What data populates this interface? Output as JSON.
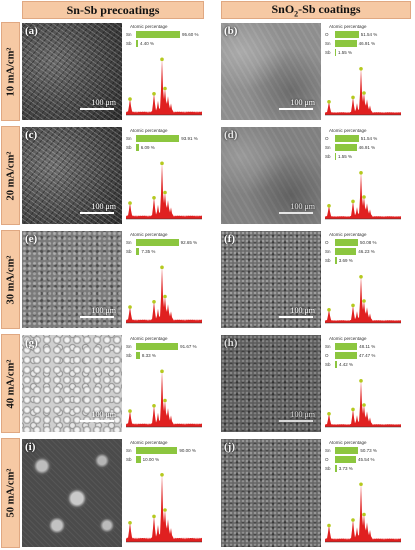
{
  "columns": {
    "left": "Sn-Sb precoatings",
    "right_pre": "SnO",
    "right_sub": "2",
    "right_post": "-Sb coatings"
  },
  "rows": [
    "10 mA/cm²",
    "20 mA/cm²",
    "30 mA/cm²",
    "40 mA/cm²",
    "50 mA/cm²"
  ],
  "eds_title": "Atomic percentage",
  "panels": [
    {
      "label": "(a)",
      "scale": "100 μm",
      "eds": [
        {
          "el": "Sn",
          "val": 95.6,
          "text": "95.60 %"
        },
        {
          "el": "Sb",
          "val": 4.4,
          "text": "4.40 %"
        }
      ]
    },
    {
      "label": "(b)",
      "scale": "100 μm",
      "eds": [
        {
          "el": "O",
          "val": 51.54,
          "text": "51.54 %"
        },
        {
          "el": "Sn",
          "val": 46.91,
          "text": "46.91 %"
        },
        {
          "el": "Sb",
          "val": 1.55,
          "text": "1.55 %"
        }
      ]
    },
    {
      "label": "(c)",
      "scale": "100 μm",
      "eds": [
        {
          "el": "Sn",
          "val": 93.91,
          "text": "93.91 %"
        },
        {
          "el": "Sb",
          "val": 6.09,
          "text": "6.09 %"
        }
      ]
    },
    {
      "label": "(d)",
      "scale": "100 μm",
      "eds": [
        {
          "el": "O",
          "val": 51.54,
          "text": "51.54 %"
        },
        {
          "el": "Sn",
          "val": 46.91,
          "text": "46.91 %"
        },
        {
          "el": "Sb",
          "val": 1.55,
          "text": "1.55 %"
        }
      ]
    },
    {
      "label": "(e)",
      "scale": "100 μm",
      "eds": [
        {
          "el": "Sn",
          "val": 92.65,
          "text": "92.65 %"
        },
        {
          "el": "Sb",
          "val": 7.35,
          "text": "7.35 %"
        }
      ]
    },
    {
      "label": "(f)",
      "scale": "100 μm",
      "eds": [
        {
          "el": "O",
          "val": 50.08,
          "text": "50.08 %"
        },
        {
          "el": "Sn",
          "val": 46.23,
          "text": "46.23 %"
        },
        {
          "el": "Sb",
          "val": 3.69,
          "text": "3.69 %"
        }
      ]
    },
    {
      "label": "(g)",
      "scale": "100 μm",
      "eds": [
        {
          "el": "Sn",
          "val": 91.67,
          "text": "91.67 %"
        },
        {
          "el": "Sb",
          "val": 8.33,
          "text": "8.33 %"
        }
      ]
    },
    {
      "label": "(h)",
      "scale": "100 μm",
      "eds": [
        {
          "el": "Sn",
          "val": 48.11,
          "text": "48.11 %"
        },
        {
          "el": "O",
          "val": 47.47,
          "text": "47.47 %"
        },
        {
          "el": "Sb",
          "val": 4.42,
          "text": "4.42 %"
        }
      ]
    },
    {
      "label": "(i)",
      "scale": "",
      "eds": [
        {
          "el": "Sn",
          "val": 90.0,
          "text": "90.00 %"
        },
        {
          "el": "Sb",
          "val": 10.0,
          "text": "10.00 %"
        }
      ]
    },
    {
      "label": "(j)",
      "scale": "",
      "eds": [
        {
          "el": "Sn",
          "val": 50.73,
          "text": "50.73 %"
        },
        {
          "el": "O",
          "val": 45.54,
          "text": "45.54 %"
        },
        {
          "el": "Sb",
          "val": 3.73,
          "text": "3.73 %"
        }
      ]
    }
  ],
  "colors": {
    "header_bg": "#f6c9a4",
    "bar": "#8cc63f",
    "spectrum": "#e02020",
    "peak_marker": "#b5c91f"
  }
}
